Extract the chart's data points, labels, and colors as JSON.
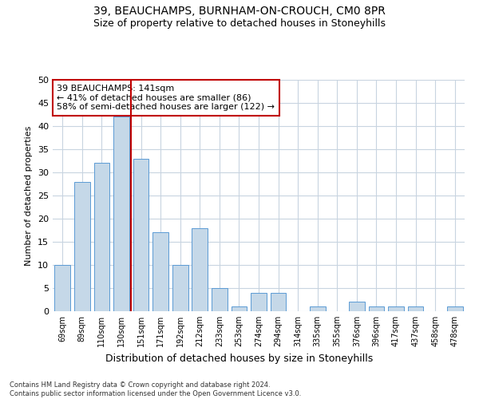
{
  "title1": "39, BEAUCHAMPS, BURNHAM-ON-CROUCH, CM0 8PR",
  "title2": "Size of property relative to detached houses in Stoneyhills",
  "xlabel": "Distribution of detached houses by size in Stoneyhills",
  "ylabel": "Number of detached properties",
  "categories": [
    "69sqm",
    "89sqm",
    "110sqm",
    "130sqm",
    "151sqm",
    "171sqm",
    "192sqm",
    "212sqm",
    "233sqm",
    "253sqm",
    "274sqm",
    "294sqm",
    "314sqm",
    "335sqm",
    "355sqm",
    "376sqm",
    "396sqm",
    "417sqm",
    "437sqm",
    "458sqm",
    "478sqm"
  ],
  "values": [
    10,
    28,
    32,
    42,
    33,
    17,
    10,
    18,
    5,
    1,
    4,
    4,
    0,
    1,
    0,
    2,
    1,
    1,
    1,
    0,
    1
  ],
  "bar_color": "#c5d8e8",
  "bar_edge_color": "#5b9bd5",
  "vline_color": "#c00000",
  "annotation_text": "39 BEAUCHAMPS: 141sqm\n← 41% of detached houses are smaller (86)\n58% of semi-detached houses are larger (122) →",
  "annotation_box_edge_color": "#c00000",
  "ylim": [
    0,
    50
  ],
  "yticks": [
    0,
    5,
    10,
    15,
    20,
    25,
    30,
    35,
    40,
    45,
    50
  ],
  "footnote": "Contains HM Land Registry data © Crown copyright and database right 2024.\nContains public sector information licensed under the Open Government Licence v3.0.",
  "bg_color": "#ffffff",
  "grid_color": "#c8d4e0"
}
